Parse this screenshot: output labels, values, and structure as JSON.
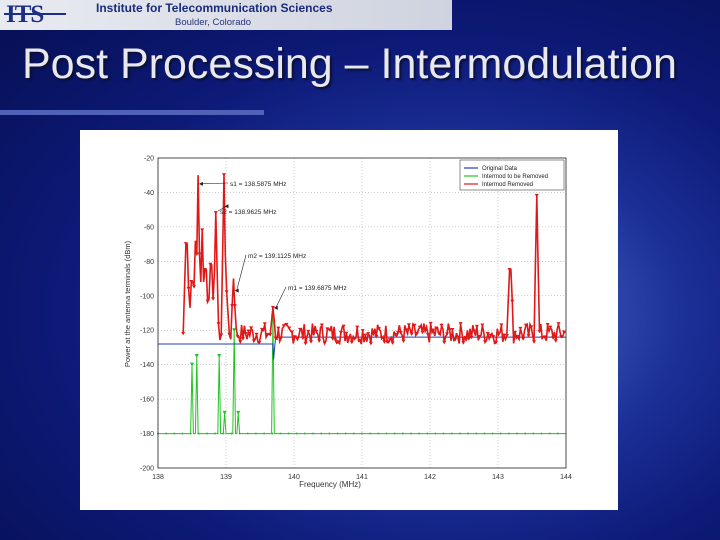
{
  "header": {
    "logo_text": "ITS",
    "institute_name": "Institute for Telecommunication Sciences",
    "location": "Boulder, Colorado"
  },
  "slide": {
    "title": "Post Processing – Intermodulation"
  },
  "colors": {
    "background": "#0d1a78",
    "original_data": "#1f3fbf",
    "removed": "#22c422",
    "removed_marks": "#e01818"
  },
  "chart_data": {
    "type": "line",
    "xlabel": "Frequency (MHz)",
    "ylabel": "Power at the antenna terminals (dBm)",
    "xlim": [
      138,
      144
    ],
    "ylim": [
      -200,
      -20
    ],
    "xticks": [
      "138",
      "139",
      "140",
      "141",
      "142",
      "143",
      "144"
    ],
    "yticks": [
      "-20",
      "-40",
      "-60",
      "-80",
      "-100",
      "-120",
      "-140",
      "-160",
      "-180",
      "-200"
    ],
    "grid": true,
    "legend_position": "top-right",
    "legend": [
      "Original Data",
      "Intermod to be Removed",
      "Intermod Removed"
    ],
    "annotations": [
      {
        "text": "s1 = 138.5875 MHz",
        "x": 138.5875,
        "y": -35
      },
      {
        "text": "s2 = 138.9625 MHz",
        "x": 138.9625,
        "y": -48
      },
      {
        "text": "m2 = 139.1125 MHz",
        "x": 139.1125,
        "y": -97
      },
      {
        "text": "m1 = 139.6875 MHz",
        "x": 139.6875,
        "y": -107
      }
    ],
    "series": [
      {
        "name": "Original Data",
        "points": [
          [
            138,
            -128
          ],
          [
            139.69,
            -128
          ],
          [
            139.7,
            -137
          ],
          [
            139.73,
            -124
          ],
          [
            144,
            -124
          ]
        ]
      },
      {
        "name": "Intermod to be Removed",
        "baseline": -180,
        "points": [
          [
            138,
            -180
          ],
          [
            138.48,
            -180
          ],
          [
            138.5,
            -140
          ],
          [
            138.52,
            -180
          ],
          [
            138.55,
            -180
          ],
          [
            138.57,
            -135
          ],
          [
            138.59,
            -180
          ],
          [
            138.88,
            -180
          ],
          [
            138.9,
            -135
          ],
          [
            138.92,
            -180
          ],
          [
            138.96,
            -180
          ],
          [
            138.98,
            -168
          ],
          [
            139.0,
            -180
          ],
          [
            139.1,
            -180
          ],
          [
            139.12,
            -120
          ],
          [
            139.14,
            -180
          ],
          [
            139.16,
            -180
          ],
          [
            139.18,
            -168
          ],
          [
            139.2,
            -180
          ],
          [
            139.67,
            -180
          ],
          [
            139.69,
            -112
          ],
          [
            139.71,
            -180
          ],
          [
            144,
            -180
          ]
        ]
      },
      {
        "name": "Intermod Removed",
        "noise_floor": -122,
        "noise_amplitude": 6,
        "peaks": [
          [
            138.42,
            -70
          ],
          [
            138.5,
            -92
          ],
          [
            138.55,
            -68
          ],
          [
            138.5875,
            -30
          ],
          [
            138.65,
            -62
          ],
          [
            138.7,
            -85
          ],
          [
            138.78,
            -82
          ],
          [
            138.85,
            -52
          ],
          [
            138.9625,
            -30
          ],
          [
            139.0,
            -98
          ],
          [
            139.1125,
            -90
          ],
          [
            139.6875,
            -107
          ],
          [
            143.18,
            -85
          ],
          [
            143.57,
            -42
          ]
        ]
      }
    ]
  }
}
